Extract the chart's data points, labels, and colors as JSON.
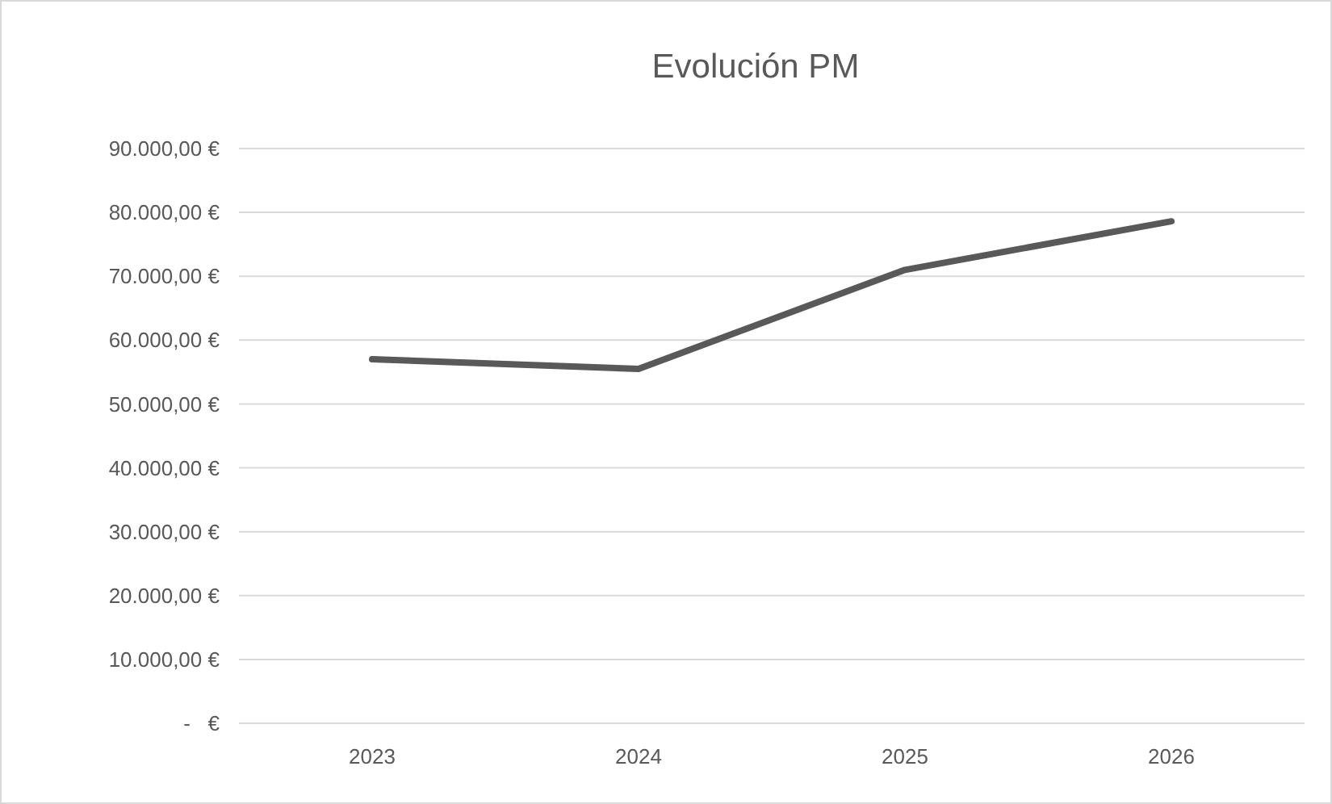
{
  "chart_data": {
    "type": "line",
    "title": "Evolución PM",
    "categories": [
      "2023",
      "2024",
      "2025",
      "2026"
    ],
    "series": [
      {
        "color": "#595959",
        "values": [
          57000,
          55500,
          71000,
          78600
        ]
      }
    ],
    "ylim": [
      0,
      90000
    ],
    "yticks": [
      {
        "value": 0,
        "label": "-   €"
      },
      {
        "value": 10000,
        "label": "10.000,00 €"
      },
      {
        "value": 20000,
        "label": "20.000,00 €"
      },
      {
        "value": 30000,
        "label": "30.000,00 €"
      },
      {
        "value": 40000,
        "label": "40.000,00 €"
      },
      {
        "value": 50000,
        "label": "50.000,00 €"
      },
      {
        "value": 60000,
        "label": "60.000,00 €"
      },
      {
        "value": 70000,
        "label": "70.000,00 €"
      },
      {
        "value": 80000,
        "label": "80.000,00 €"
      },
      {
        "value": 90000,
        "label": "90.000,00 €"
      }
    ],
    "grid": "y",
    "marker": "none",
    "line_style": "solid"
  }
}
